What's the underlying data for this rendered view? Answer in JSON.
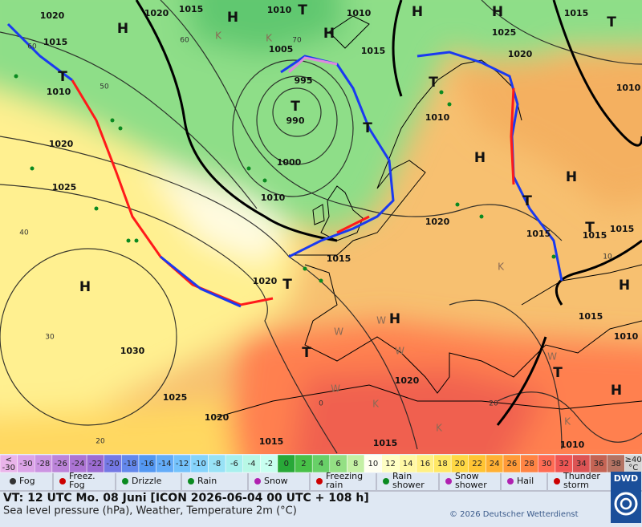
{
  "map": {
    "pressure_labels": [
      "1020",
      "1015",
      "1010",
      "1020",
      "1025",
      "1020",
      "1015",
      "1010",
      "1005",
      "995",
      "990",
      "1000",
      "1010",
      "1010",
      "1015",
      "1010",
      "1020",
      "1015",
      "1020",
      "1030",
      "1025",
      "1020",
      "1015",
      "1015",
      "1020",
      "1015",
      "1010",
      "1010",
      "1015",
      "1015",
      "1015",
      "1025",
      "1020",
      "1015",
      "1010"
    ],
    "pressure_centers": [
      "H",
      "H",
      "T",
      "H",
      "H",
      "T",
      "T",
      "T",
      "H",
      "T",
      "T",
      "H",
      "H",
      "T",
      "T",
      "T",
      "H",
      "H",
      "T",
      "H",
      "T",
      "H"
    ],
    "temperature_labels": [
      "60",
      "50",
      "40",
      "30",
      "20",
      "70",
      "60",
      "0",
      "20",
      "10"
    ],
    "weather_letters": [
      "K",
      "K",
      "W",
      "W",
      "K",
      "K",
      "K",
      "W",
      "W",
      "K",
      "W"
    ]
  },
  "color_scale": [
    {
      "top": "<",
      "bottom": "-30",
      "color": "#eab4ea"
    },
    {
      "label": "-30",
      "color": "#dca4e8"
    },
    {
      "label": "-28",
      "color": "#cc94e2"
    },
    {
      "label": "-26",
      "color": "#bc84da"
    },
    {
      "label": "-24",
      "color": "#ac74d4"
    },
    {
      "label": "-22",
      "color": "#9c6cd2"
    },
    {
      "label": "-20",
      "color": "#7478e4"
    },
    {
      "label": "-18",
      "color": "#6488ec"
    },
    {
      "label": "-16",
      "color": "#5498f2"
    },
    {
      "label": "-14",
      "color": "#64acf8"
    },
    {
      "label": "-12",
      "color": "#74c2fc"
    },
    {
      "label": "-10",
      "color": "#86d4fc"
    },
    {
      "label": "-8",
      "color": "#98e2f6"
    },
    {
      "label": "-6",
      "color": "#a8f0ee"
    },
    {
      "label": "-4",
      "color": "#b8f8e6"
    },
    {
      "label": "-2",
      "color": "#c8fff0"
    },
    {
      "label": "0",
      "color": "#28a838"
    },
    {
      "label": "2",
      "color": "#48c048"
    },
    {
      "label": "4",
      "color": "#68d068"
    },
    {
      "label": "6",
      "color": "#94e084"
    },
    {
      "label": "8",
      "color": "#c4f0a4"
    },
    {
      "label": "10",
      "color": "#fffff0"
    },
    {
      "label": "12",
      "color": "#ffffc4"
    },
    {
      "label": "14",
      "color": "#fff8a4"
    },
    {
      "label": "16",
      "color": "#fff084"
    },
    {
      "label": "18",
      "color": "#ffe864"
    },
    {
      "label": "20",
      "color": "#ffd844"
    },
    {
      "label": "22",
      "color": "#ffc434"
    },
    {
      "label": "24",
      "color": "#ffb034"
    },
    {
      "label": "26",
      "color": "#ff9a38"
    },
    {
      "label": "28",
      "color": "#ff8444"
    },
    {
      "label": "30",
      "color": "#ff6c54"
    },
    {
      "label": "32",
      "color": "#f05654"
    },
    {
      "label": "34",
      "color": "#dc5454"
    },
    {
      "label": "36",
      "color": "#c46454"
    },
    {
      "label": "38",
      "color": "#b47464"
    },
    {
      "top": "≥40",
      "bottom": "°C",
      "color": "#d4d4d4"
    }
  ],
  "legend": [
    {
      "lines": [
        "Fog"
      ]
    },
    {
      "lines": [
        "Freez.",
        "Fog"
      ]
    },
    {
      "lines": [
        "Drizzle"
      ]
    },
    {
      "lines": [
        "Rain"
      ]
    },
    {
      "lines": [
        "Snow"
      ]
    },
    {
      "lines": [
        "Freezing",
        "rain"
      ]
    },
    {
      "lines": [
        "Rain",
        "shower"
      ]
    },
    {
      "lines": [
        "Snow",
        "shower"
      ]
    },
    {
      "lines": [
        "Hail"
      ]
    },
    {
      "lines": [
        "Thunder",
        "storm"
      ]
    }
  ],
  "footer": {
    "valid_time": "VT: 12 UTC Mo.  08 Juni [ICON 2026-06-04  00 UTC + 108 h]",
    "product": "Sea level pressure (hPa), Weather, Temperature 2m (°C)",
    "copyright": "© 2026 Deutscher Wetterdienst",
    "logo": "DWD"
  }
}
